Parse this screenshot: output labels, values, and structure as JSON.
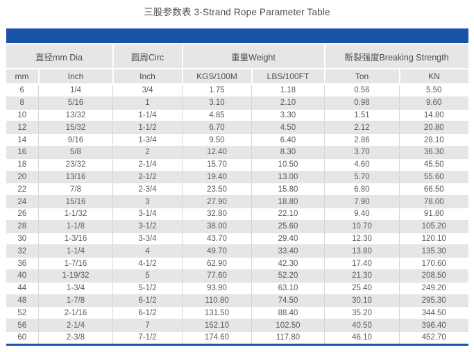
{
  "page": {
    "title": "三股参数表 3-Strand Rope Parameter Table"
  },
  "colors": {
    "accent_blue": "#1a52a8",
    "header_gray": "#e6e6e8",
    "stripe_gray": "#e6e6e8",
    "divider_gray": "#d7d7d9",
    "text_gray": "#5a5a5c"
  },
  "table": {
    "group_headers": [
      {
        "label": "直径mm Dia",
        "span": 2
      },
      {
        "label": "圆周Circ",
        "span": 1
      },
      {
        "label": "重量Weight",
        "span": 2
      },
      {
        "label": "断裂强度Breaking Strength",
        "span": 2
      }
    ],
    "column_headers": [
      "mm",
      "Inch",
      "Inch",
      "KGS/100M",
      "LBS/100FT",
      "Ton",
      "KN"
    ],
    "rows": [
      [
        "6",
        "1/4",
        "3/4",
        "1.75",
        "1.18",
        "0.56",
        "5.50"
      ],
      [
        "8",
        "5/16",
        "1",
        "3.10",
        "2.10",
        "0.98",
        "9.60"
      ],
      [
        "10",
        "13/32",
        "1-1/4",
        "4.85",
        "3.30",
        "1.51",
        "14.80"
      ],
      [
        "12",
        "15/32",
        "1-1/2",
        "6.70",
        "4.50",
        "2.12",
        "20.80"
      ],
      [
        "14",
        "9/16",
        "1-3/4",
        "9.50",
        "6.40",
        "2.86",
        "28.10"
      ],
      [
        "16",
        "5/8",
        "2",
        "12.40",
        "8.30",
        "3.70",
        "36.30"
      ],
      [
        "18",
        "23/32",
        "2-1/4",
        "15.70",
        "10.50",
        "4.60",
        "45.50"
      ],
      [
        "20",
        "13/16",
        "2-1/2",
        "19.40",
        "13.00",
        "5.70",
        "55.60"
      ],
      [
        "22",
        "7/8",
        "2-3/4",
        "23.50",
        "15.80",
        "6.80",
        "66.50"
      ],
      [
        "24",
        "15/16",
        "3",
        "27.90",
        "18.80",
        "7.90",
        "78.00"
      ],
      [
        "26",
        "1-1/32",
        "3-1/4",
        "32.80",
        "22.10",
        "9.40",
        "91.80"
      ],
      [
        "28",
        "1-1/8",
        "3-1/2",
        "38.00",
        "25.60",
        "10.70",
        "105.20"
      ],
      [
        "30",
        "1-3/16",
        "3-3/4",
        "43.70",
        "29.40",
        "12.30",
        "120.10"
      ],
      [
        "32",
        "1-1/4",
        "4",
        "49.70",
        "33.40",
        "13.80",
        "135.30"
      ],
      [
        "36",
        "1-7/16",
        "4-1/2",
        "62.90",
        "42.30",
        "17.40",
        "170.60"
      ],
      [
        "40",
        "1-19/32",
        "5",
        "77.60",
        "52.20",
        "21.30",
        "208.50"
      ],
      [
        "44",
        "1-3/4",
        "5-1/2",
        "93.90",
        "63.10",
        "25.40",
        "249.20"
      ],
      [
        "48",
        "1-7/8",
        "6-1/2",
        "110.80",
        "74.50",
        "30.10",
        "295.30"
      ],
      [
        "52",
        "2-1/16",
        "6-1/2",
        "131.50",
        "88.40",
        "35.20",
        "344.50"
      ],
      [
        "56",
        "2-1/4",
        "7",
        "152.10",
        "102.50",
        "40.50",
        "396.40"
      ],
      [
        "60",
        "2-3/8",
        "7-1/2",
        "174.60",
        "117.80",
        "46.10",
        "452.70"
      ]
    ]
  }
}
